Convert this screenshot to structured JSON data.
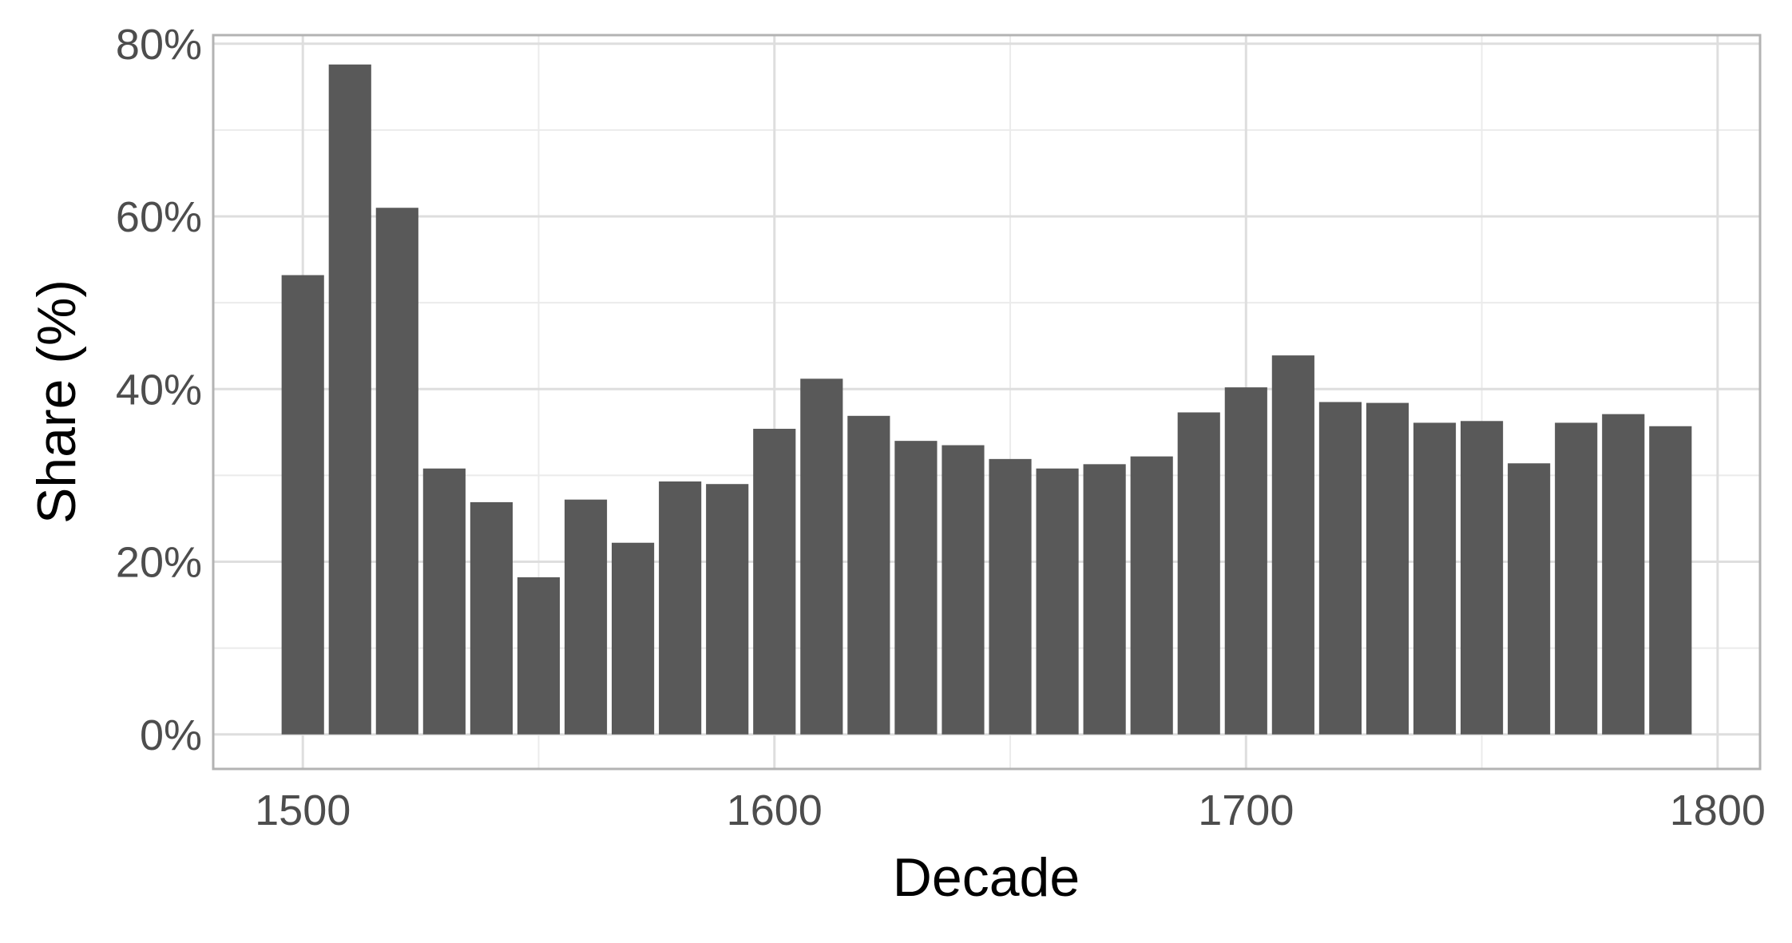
{
  "chart_data": {
    "type": "bar",
    "xlabel": "Decade",
    "ylabel": "Share (%)",
    "x": [
      1500,
      1510,
      1520,
      1530,
      1540,
      1550,
      1560,
      1570,
      1580,
      1590,
      1600,
      1610,
      1620,
      1630,
      1640,
      1650,
      1660,
      1670,
      1680,
      1690,
      1700,
      1710,
      1720,
      1730,
      1740,
      1750,
      1760,
      1770,
      1780,
      1790
    ],
    "values": [
      53.2,
      77.6,
      61.0,
      30.8,
      26.9,
      18.2,
      27.2,
      22.2,
      29.3,
      29.0,
      35.4,
      41.2,
      36.9,
      34.0,
      33.5,
      31.9,
      30.8,
      31.3,
      32.2,
      37.3,
      40.2,
      43.9,
      38.5,
      38.4,
      36.1,
      36.3,
      31.4,
      36.1,
      37.1,
      35.7
    ],
    "xticks": [
      1500,
      1600,
      1700,
      1800
    ],
    "xtick_labels": [
      "1500",
      "1600",
      "1700",
      "1800"
    ],
    "xlim": [
      1481,
      1809
    ],
    "yticks": [
      0,
      20,
      40,
      60,
      80
    ],
    "ytick_labels": [
      "0%",
      "20%",
      "40%",
      "60%",
      "80%"
    ],
    "ylim": [
      -4,
      81
    ],
    "grid": true,
    "colors": {
      "bar": "#595959",
      "grid_major": "#dedede",
      "grid_minor": "#ebebeb",
      "panel_border": "#b3b3b3"
    }
  }
}
